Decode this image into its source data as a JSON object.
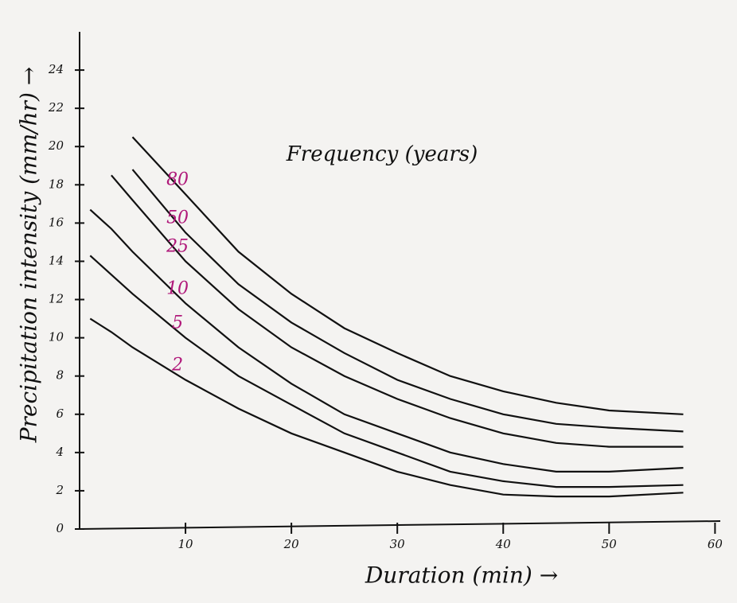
{
  "chart_data": {
    "type": "line",
    "y_label": "Precipitation intensity (mm/hr) →",
    "x_label": "Duration (min) →",
    "annotation": "Frequency (years)",
    "x": [
      1,
      3,
      5,
      10,
      15,
      20,
      25,
      30,
      35,
      40,
      45,
      50,
      57
    ],
    "series": [
      {
        "name": "2",
        "color": "#111111",
        "label_color": "#b0187a",
        "values": [
          11,
          10.3,
          9.5,
          7.8,
          6.3,
          5,
          4,
          3,
          2.3,
          1.8,
          1.7,
          1.7,
          1.9
        ]
      },
      {
        "name": "5",
        "color": "#111111",
        "label_color": "#b0187a",
        "values": [
          14.3,
          13.3,
          12.3,
          10,
          8,
          6.5,
          5,
          4,
          3,
          2.5,
          2.2,
          2.2,
          2.3
        ]
      },
      {
        "name": "10",
        "color": "#111111",
        "label_color": "#b0187a",
        "values": [
          16.7,
          15.7,
          14.5,
          11.8,
          9.5,
          7.6,
          6,
          5,
          4,
          3.4,
          3,
          3,
          3.2
        ]
      },
      {
        "name": "25",
        "color": "#111111",
        "label_color": "#b0187a",
        "values": [
          null,
          18.5,
          17.2,
          14,
          11.5,
          9.5,
          8,
          6.8,
          5.8,
          5,
          4.5,
          4.3,
          4.3
        ]
      },
      {
        "name": "50",
        "color": "#111111",
        "label_color": "#b0187a",
        "values": [
          null,
          null,
          18.8,
          15.5,
          12.8,
          10.8,
          9.2,
          7.8,
          6.8,
          6,
          5.5,
          5.3,
          5.1
        ]
      },
      {
        "name": "80",
        "color": "#111111",
        "label_color": "#b0187a",
        "values": [
          null,
          null,
          20.5,
          17.5,
          14.5,
          12.3,
          10.5,
          9.2,
          8,
          7.2,
          6.6,
          6.2,
          6
        ]
      }
    ],
    "xlim": [
      0,
      62
    ],
    "ylim": [
      0,
      26
    ],
    "xticks": [
      10,
      20,
      30,
      40,
      50,
      60
    ],
    "yticks": [
      0,
      2,
      4,
      6,
      8,
      10,
      12,
      14,
      16,
      18,
      20,
      22,
      24
    ]
  }
}
